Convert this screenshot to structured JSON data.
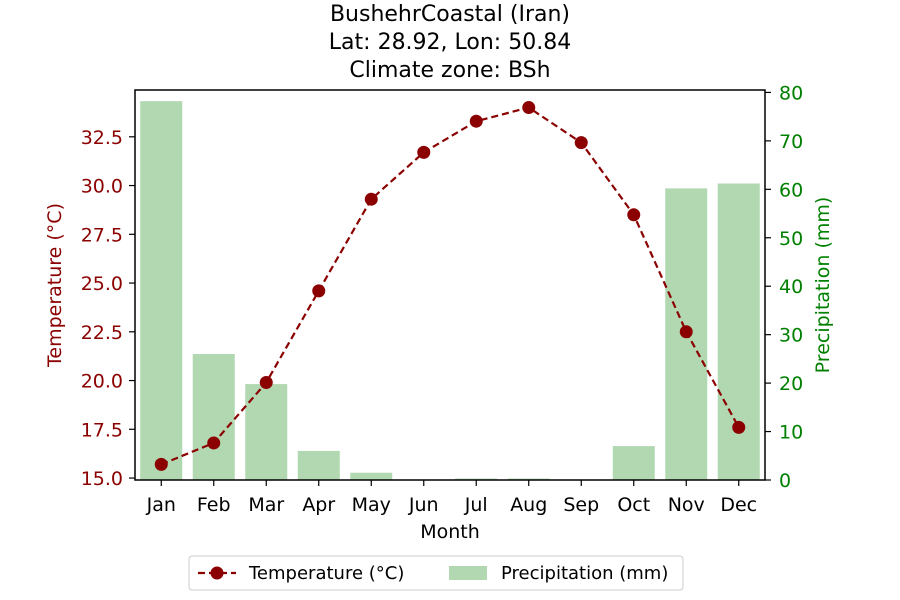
{
  "chart_data": {
    "type": "bar",
    "title": "BushehrCoastal (Iran)",
    "subtitle_lines": [
      "Lat: 28.92, Lon: 50.84",
      "Climate zone: BSh"
    ],
    "xlabel": "Month",
    "categories": [
      "Jan",
      "Feb",
      "Mar",
      "Apr",
      "May",
      "Jun",
      "Jul",
      "Aug",
      "Sep",
      "Oct",
      "Nov",
      "Dec"
    ],
    "y_left": {
      "label": "Temperature (°C)",
      "lim": [
        14.9,
        34.9
      ],
      "ticks": [
        15.0,
        17.5,
        20.0,
        22.5,
        25.0,
        27.5,
        30.0,
        32.5
      ],
      "tick_labels": [
        "15.0",
        "17.5",
        "20.0",
        "22.5",
        "25.0",
        "27.5",
        "30.0",
        "32.5"
      ],
      "color": "#8b0000"
    },
    "y_right": {
      "label": "Precipitation (mm)",
      "lim": [
        0,
        80.5
      ],
      "ticks": [
        0,
        10,
        20,
        30,
        40,
        50,
        60,
        70,
        80
      ],
      "tick_labels": [
        "0",
        "10",
        "20",
        "30",
        "40",
        "50",
        "60",
        "70",
        "80"
      ],
      "color": "#008000"
    },
    "series": [
      {
        "name": "Temperature (°C)",
        "kind": "line",
        "axis": "left",
        "color": "#8b0000",
        "style": "dashed with circle markers",
        "values": [
          15.7,
          16.8,
          19.9,
          24.6,
          29.3,
          31.7,
          33.3,
          34.0,
          32.2,
          28.5,
          22.5,
          17.6
        ]
      },
      {
        "name": "Precipitation (mm)",
        "kind": "bar",
        "axis": "right",
        "color": "#b2d8b2",
        "values": [
          78.2,
          26.0,
          19.8,
          6.0,
          1.5,
          0.0,
          0.3,
          0.3,
          0.0,
          7.0,
          60.2,
          61.2
        ]
      }
    ],
    "legend": {
      "placement": "bottom-center",
      "entries": [
        "Temperature (°C)",
        "Precipitation (mm)"
      ]
    },
    "grid": false
  }
}
